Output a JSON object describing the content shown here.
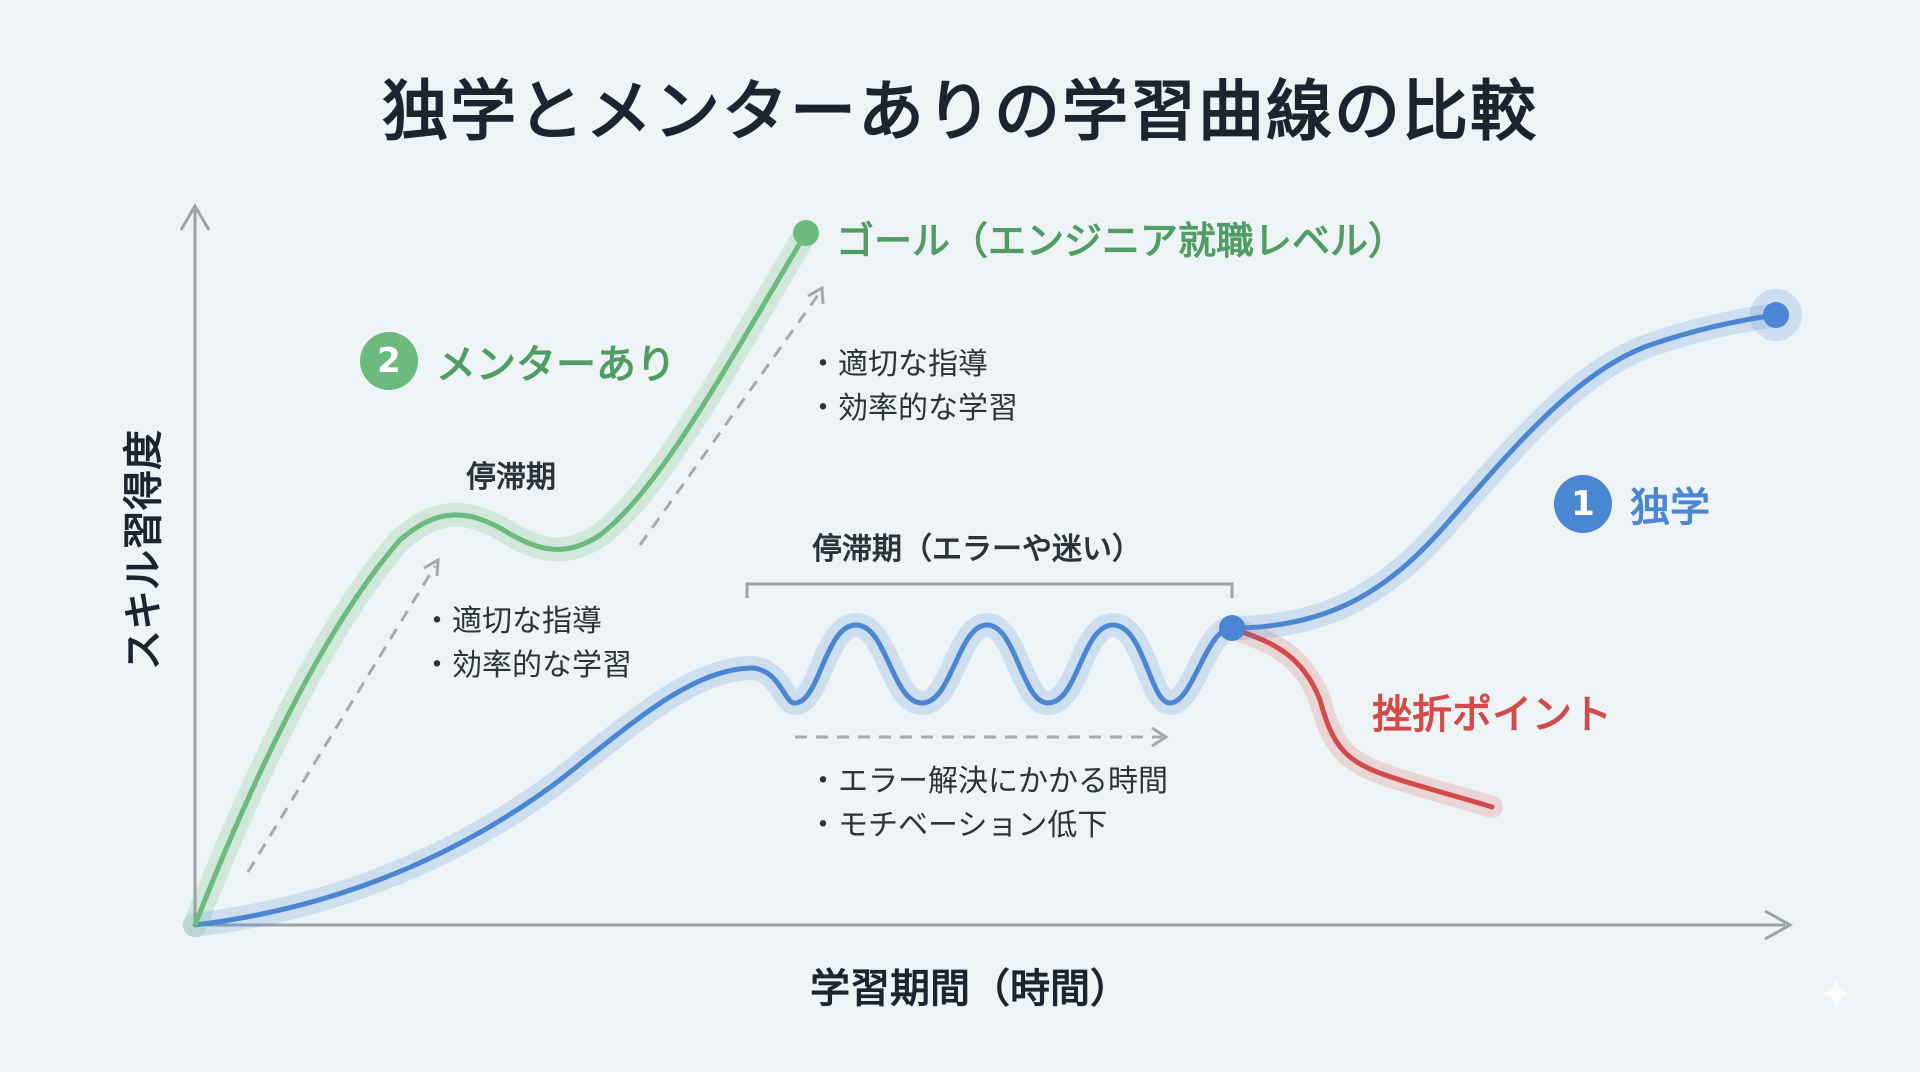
{
  "title": "独学とメンターありの学習曲線の比較",
  "axes": {
    "y_label": "スキル習得度",
    "x_label": "学習期間（時間）"
  },
  "mentor": {
    "badge": "2",
    "label": "メンターあり",
    "plateau_label": "停滞期",
    "goal_label": "ゴール（エンジニア就職レベル）",
    "bullets": [
      "適切な指導",
      "効率的な学習"
    ],
    "bullets_upper": [
      "適切な指導",
      "効率的な学習"
    ]
  },
  "solo": {
    "badge": "1",
    "label": "独学",
    "plateau_label": "停滞期（エラーや迷い）",
    "bullets": [
      "エラー解決にかかる時間",
      "モチベーション低下"
    ]
  },
  "frustration_label": "挫折ポイント",
  "colors": {
    "mentor": "#6cba7e",
    "solo": "#4a86d2",
    "frustration": "#d44a4a",
    "axis": "#9aa3aa",
    "background": "#eef4f6"
  },
  "icons": [
    "sparkle-icon"
  ]
}
